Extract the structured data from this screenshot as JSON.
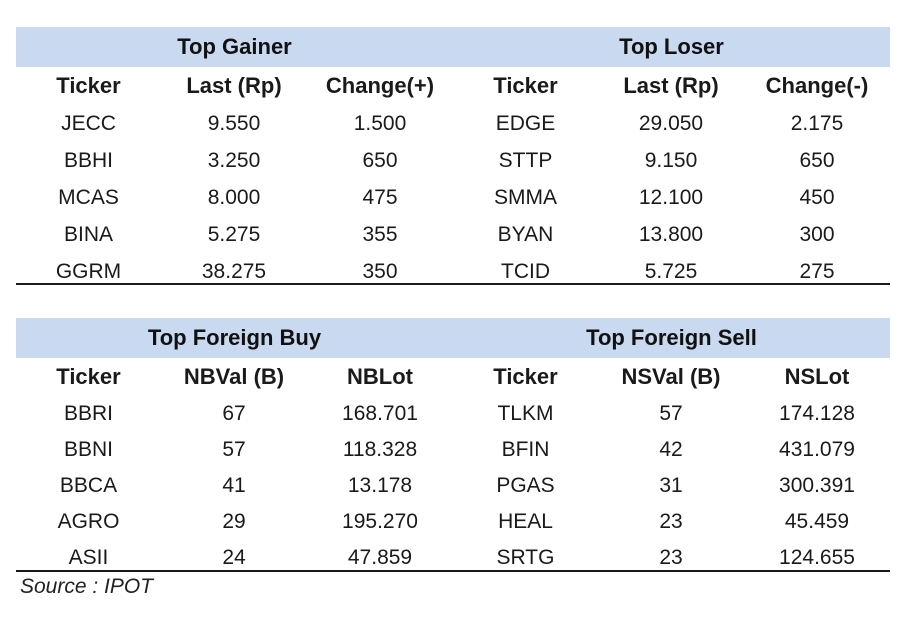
{
  "gainer_loser": {
    "left_title": "Top Gainer",
    "right_title": "Top Loser",
    "headers": [
      "Ticker",
      "Last (Rp)",
      "Change(+)",
      "Ticker",
      "Last (Rp)",
      "Change(-)"
    ],
    "rows": [
      [
        "JECC",
        "9.550",
        "1.500",
        "EDGE",
        "29.050",
        "2.175"
      ],
      [
        "BBHI",
        "3.250",
        "650",
        "STTP",
        "9.150",
        "650"
      ],
      [
        "MCAS",
        "8.000",
        "475",
        "SMMA",
        "12.100",
        "450"
      ],
      [
        "BINA",
        "5.275",
        "355",
        "BYAN",
        "13.800",
        "300"
      ],
      [
        "GGRM",
        "38.275",
        "350",
        "TCID",
        "5.725",
        "275"
      ]
    ]
  },
  "foreign": {
    "left_title": "Top Foreign Buy",
    "right_title": "Top Foreign Sell",
    "headers": [
      "Ticker",
      "NBVal (B)",
      "NBLot",
      "Ticker",
      "NSVal (B)",
      "NSLot"
    ],
    "rows": [
      [
        "BBRI",
        "67",
        "168.701",
        "TLKM",
        "57",
        "174.128"
      ],
      [
        "BBNI",
        "57",
        "118.328",
        "BFIN",
        "42",
        "431.079"
      ],
      [
        "BBCA",
        "41",
        "13.178",
        "PGAS",
        "31",
        "300.391"
      ],
      [
        "AGRO",
        "29",
        "195.270",
        "HEAL",
        "23",
        "45.459"
      ],
      [
        "ASII",
        "24",
        "47.859",
        "SRTG",
        "23",
        "124.655"
      ]
    ]
  },
  "source": "Source : IPOT"
}
